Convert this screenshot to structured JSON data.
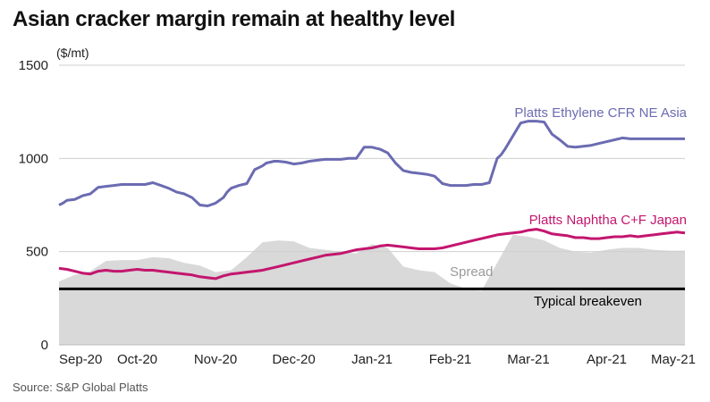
{
  "title": "Asian cracker margin remain at healthy level",
  "source": "Source: S&P Global Platts",
  "chart_data": {
    "type": "line",
    "y_unit": "($/mt)",
    "ylim": [
      0,
      1500
    ],
    "y_ticks": [
      0,
      500,
      1000,
      1500
    ],
    "x_tick_labels": [
      "Sep-20",
      "Oct-20",
      "Nov-20",
      "Dec-20",
      "Jan-21",
      "Feb-21",
      "Mar-21",
      "Apr-21",
      "May-21"
    ],
    "grid": "horizontal",
    "colors": {
      "ethylene": "#6b6bb2",
      "naphtha": "#c3166e",
      "spread": "#d9d9d9",
      "breakeven": "#000000"
    },
    "series": [
      {
        "name": "Platts Ethylene CFR NE Asia",
        "type": "line",
        "x": [
          0,
          0.05,
          0.1,
          0.2,
          0.25,
          0.3,
          0.4,
          0.5,
          0.6,
          0.7,
          0.8,
          0.9,
          1.0,
          1.1,
          1.2,
          1.3,
          1.4,
          1.5,
          1.6,
          1.7,
          1.8,
          1.9,
          2.0,
          2.1,
          2.15,
          2.2,
          2.3,
          2.4,
          2.5,
          2.6,
          2.65,
          2.7,
          2.75,
          2.8,
          2.9,
          3.0,
          3.1,
          3.2,
          3.3,
          3.4,
          3.5,
          3.6,
          3.7,
          3.8,
          3.9,
          4.0,
          4.05,
          4.1,
          4.2,
          4.3,
          4.4,
          4.5,
          4.6,
          4.7,
          4.8,
          4.9,
          5.0,
          5.1,
          5.2,
          5.3,
          5.4,
          5.5,
          5.6,
          5.65,
          5.7,
          5.8,
          5.9,
          6.0,
          6.1,
          6.2,
          6.3,
          6.4,
          6.5,
          6.6,
          6.7,
          6.8,
          6.9,
          7.0,
          7.1,
          7.2,
          7.3,
          7.4,
          7.5,
          7.6,
          7.7,
          7.8,
          7.9,
          8.0
        ],
        "values": [
          750,
          760,
          775,
          780,
          790,
          800,
          810,
          845,
          850,
          855,
          860,
          860,
          860,
          860,
          870,
          855,
          840,
          820,
          810,
          790,
          750,
          745,
          760,
          790,
          820,
          840,
          855,
          865,
          940,
          960,
          975,
          980,
          985,
          985,
          980,
          970,
          975,
          985,
          990,
          995,
          995,
          995,
          1000,
          1000,
          1060,
          1060,
          1055,
          1050,
          1030,
          975,
          935,
          925,
          920,
          915,
          905,
          865,
          855,
          855,
          855,
          860,
          860,
          870,
          1000,
          1020,
          1050,
          1120,
          1190,
          1200,
          1200,
          1195,
          1130,
          1100,
          1065,
          1060,
          1065,
          1070,
          1080,
          1090,
          1100,
          1110,
          1105,
          1105,
          1105,
          1105,
          1105,
          1105,
          1105,
          1105
        ]
      },
      {
        "name": "Platts Naphtha C+F Japan",
        "type": "line",
        "x": [
          0,
          0.1,
          0.2,
          0.3,
          0.4,
          0.5,
          0.6,
          0.7,
          0.8,
          0.9,
          1.0,
          1.1,
          1.2,
          1.3,
          1.4,
          1.5,
          1.6,
          1.7,
          1.8,
          1.9,
          2.0,
          2.1,
          2.2,
          2.3,
          2.4,
          2.5,
          2.6,
          2.7,
          2.8,
          2.9,
          3.0,
          3.1,
          3.2,
          3.3,
          3.4,
          3.5,
          3.6,
          3.7,
          3.8,
          3.9,
          4.0,
          4.1,
          4.2,
          4.3,
          4.4,
          4.5,
          4.6,
          4.7,
          4.8,
          4.9,
          5.0,
          5.1,
          5.2,
          5.3,
          5.4,
          5.5,
          5.6,
          5.7,
          5.8,
          5.9,
          6.0,
          6.1,
          6.2,
          6.3,
          6.4,
          6.5,
          6.6,
          6.7,
          6.8,
          6.9,
          7.0,
          7.1,
          7.2,
          7.3,
          7.4,
          7.5,
          7.6,
          7.7,
          7.8,
          7.9,
          8.0
        ],
        "values": [
          410,
          405,
          395,
          385,
          380,
          395,
          400,
          395,
          395,
          400,
          405,
          400,
          400,
          395,
          390,
          385,
          380,
          375,
          365,
          360,
          355,
          370,
          380,
          385,
          390,
          395,
          400,
          410,
          420,
          430,
          440,
          450,
          460,
          470,
          480,
          485,
          490,
          500,
          510,
          515,
          520,
          530,
          535,
          530,
          525,
          520,
          515,
          515,
          515,
          520,
          530,
          540,
          550,
          560,
          570,
          580,
          590,
          595,
          600,
          605,
          615,
          620,
          610,
          595,
          590,
          585,
          575,
          575,
          570,
          570,
          575,
          580,
          580,
          585,
          580,
          585,
          590,
          595,
          600,
          605,
          600
        ]
      },
      {
        "name": "Spread",
        "type": "area",
        "x": [
          0,
          0.2,
          0.4,
          0.6,
          0.8,
          1.0,
          1.2,
          1.4,
          1.6,
          1.8,
          2.0,
          2.2,
          2.4,
          2.6,
          2.8,
          3.0,
          3.2,
          3.4,
          3.6,
          3.8,
          4.0,
          4.2,
          4.4,
          4.6,
          4.8,
          5.0,
          5.2,
          5.4,
          5.6,
          5.8,
          6.0,
          6.2,
          6.4,
          6.6,
          6.8,
          7.0,
          7.2,
          7.4,
          7.6,
          7.8,
          8.0
        ],
        "values": [
          340,
          375,
          395,
          450,
          455,
          455,
          470,
          465,
          440,
          425,
          390,
          400,
          470,
          550,
          560,
          555,
          520,
          510,
          500,
          490,
          540,
          520,
          420,
          400,
          390,
          330,
          300,
          290,
          440,
          590,
          580,
          560,
          520,
          500,
          495,
          510,
          520,
          520,
          510,
          505,
          505
        ]
      }
    ],
    "annotations": {
      "ethylene_label": "Platts Ethylene CFR NE Asia",
      "naphtha_label": "Platts Naphtha C+F Japan",
      "spread_label": "Spread",
      "breakeven_label": "Typical breakeven",
      "breakeven_value": 300
    }
  }
}
